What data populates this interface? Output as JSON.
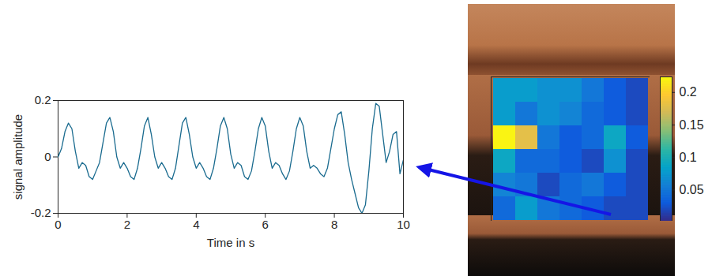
{
  "chart_data": [
    {
      "type": "line",
      "xlabel": "Time in s",
      "ylabel": "signal amplitude",
      "x": [
        0.0,
        0.1,
        0.2,
        0.3,
        0.4,
        0.5,
        0.6,
        0.7,
        0.8,
        0.9,
        1.0,
        1.1,
        1.2,
        1.3,
        1.4,
        1.5,
        1.6,
        1.7,
        1.8,
        1.9,
        2.0,
        2.1,
        2.2,
        2.3,
        2.4,
        2.5,
        2.6,
        2.7,
        2.8,
        2.9,
        3.0,
        3.1,
        3.2,
        3.3,
        3.4,
        3.5,
        3.6,
        3.7,
        3.8,
        3.9,
        4.0,
        4.1,
        4.2,
        4.3,
        4.4,
        4.5,
        4.6,
        4.7,
        4.8,
        4.9,
        5.0,
        5.1,
        5.2,
        5.3,
        5.4,
        5.5,
        5.6,
        5.7,
        5.8,
        5.9,
        6.0,
        6.1,
        6.2,
        6.3,
        6.4,
        6.5,
        6.6,
        6.7,
        6.8,
        6.9,
        7.0,
        7.1,
        7.2,
        7.3,
        7.4,
        7.5,
        7.6,
        7.7,
        7.8,
        7.9,
        8.0,
        8.1,
        8.2,
        8.3,
        8.4,
        8.5,
        8.6,
        8.7,
        8.8,
        8.9,
        9.0,
        9.1,
        9.2,
        9.3,
        9.4,
        9.5,
        9.6,
        9.7,
        9.8,
        9.9,
        10.0
      ],
      "series": [
        {
          "color": "#1a6b8f",
          "values": [
            0.0,
            0.03,
            0.09,
            0.12,
            0.1,
            0.02,
            -0.04,
            -0.02,
            -0.03,
            -0.07,
            -0.08,
            -0.05,
            -0.02,
            0.05,
            0.12,
            0.14,
            0.09,
            0.0,
            -0.04,
            -0.02,
            -0.04,
            -0.07,
            -0.08,
            -0.04,
            0.03,
            0.11,
            0.14,
            0.08,
            0.0,
            -0.04,
            -0.02,
            -0.04,
            -0.07,
            -0.08,
            -0.04,
            0.04,
            0.12,
            0.14,
            0.08,
            0.0,
            -0.04,
            -0.02,
            -0.04,
            -0.07,
            -0.08,
            -0.04,
            0.03,
            0.11,
            0.14,
            0.1,
            0.01,
            -0.04,
            -0.02,
            -0.03,
            -0.07,
            -0.08,
            -0.05,
            0.02,
            0.1,
            0.14,
            0.11,
            0.02,
            -0.04,
            -0.02,
            -0.03,
            -0.06,
            -0.08,
            -0.05,
            0.02,
            0.1,
            0.14,
            0.11,
            0.02,
            -0.04,
            -0.03,
            -0.04,
            -0.06,
            -0.07,
            -0.04,
            0.03,
            0.1,
            0.15,
            0.16,
            0.08,
            -0.02,
            -0.08,
            -0.13,
            -0.18,
            -0.2,
            -0.17,
            -0.05,
            0.1,
            0.19,
            0.18,
            0.08,
            -0.02,
            0.02,
            0.08,
            0.09,
            -0.06,
            -0.01
          ]
        }
      ],
      "xlim": [
        0,
        10
      ],
      "xticks": [
        0,
        2,
        4,
        6,
        8,
        10
      ],
      "ylim": [
        -0.2,
        0.2
      ],
      "yticks": [
        -0.2,
        0,
        0.2
      ],
      "grid": false
    },
    {
      "type": "heatmap",
      "cells": [
        [
          0.08,
          0.08,
          0.07,
          0.07,
          0.05,
          0.03,
          0.02
        ],
        [
          0.08,
          0.05,
          0.07,
          0.06,
          0.04,
          0.03,
          0.02
        ],
        [
          0.22,
          0.18,
          0.05,
          0.03,
          0.04,
          0.09,
          0.03
        ],
        [
          0.09,
          0.04,
          0.04,
          0.03,
          0.02,
          0.07,
          0.02
        ],
        [
          0.06,
          0.05,
          0.02,
          0.04,
          0.05,
          0.03,
          0.02
        ],
        [
          0.04,
          0.08,
          0.05,
          0.04,
          0.03,
          0.02,
          0.02
        ]
      ],
      "colorbar": {
        "range": [
          0.002,
          0.224
        ],
        "ticks": [
          0.05,
          0.1,
          0.15,
          0.2
        ]
      },
      "tick_labels": false
    }
  ]
}
